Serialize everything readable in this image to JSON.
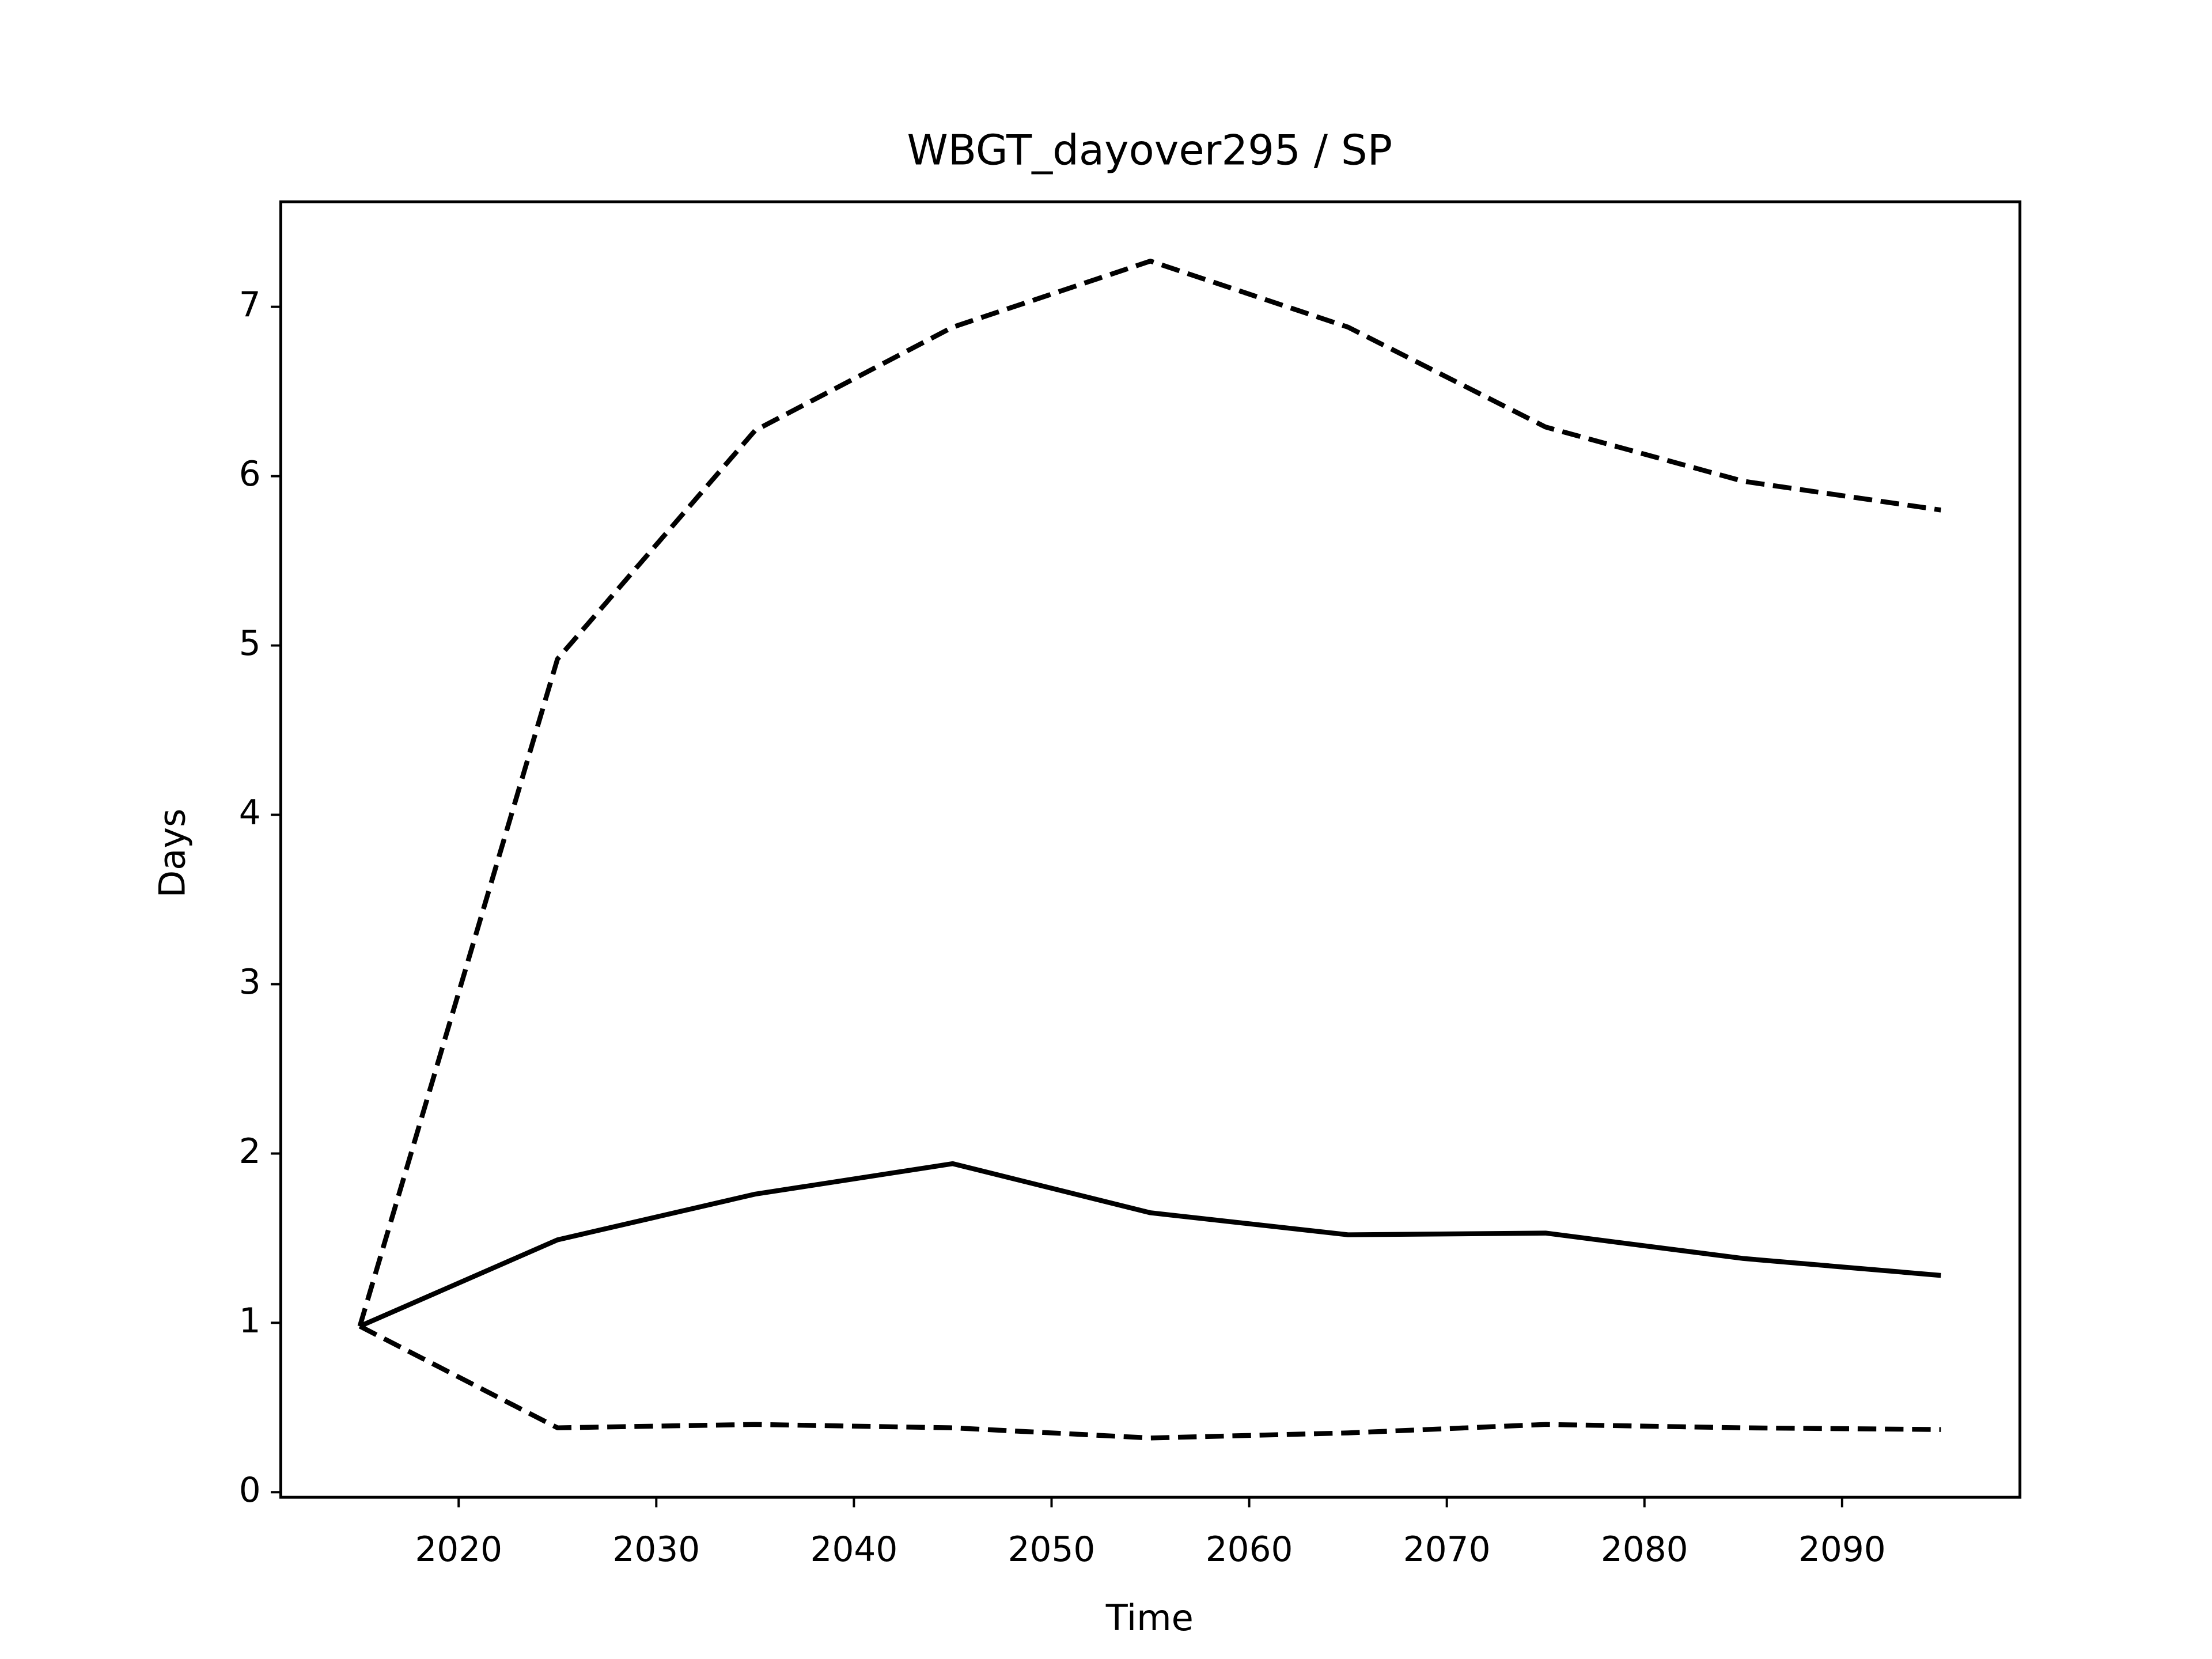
{
  "chart_data": {
    "type": "line",
    "title": "WBGT_dayover295 / SP",
    "xlabel": "Time",
    "ylabel": "Days",
    "x": [
      2015,
      2025,
      2035,
      2045,
      2055,
      2065,
      2075,
      2085,
      2095
    ],
    "series": [
      {
        "color": "#000000",
        "dash": "solid",
        "values": [
          0.98,
          1.49,
          1.76,
          1.94,
          1.65,
          1.52,
          1.53,
          1.38,
          1.28
        ]
      },
      {
        "color": "#000000",
        "dash": "dashed",
        "values": [
          0.98,
          4.92,
          6.27,
          6.88,
          7.27,
          6.88,
          6.29,
          5.97,
          5.8
        ]
      },
      {
        "color": "#000000",
        "dash": "dashed",
        "values": [
          0.98,
          0.38,
          0.4,
          0.38,
          0.32,
          0.35,
          0.4,
          0.38,
          0.37
        ]
      }
    ],
    "xlim": [
      2011,
      2099
    ],
    "xticks": [
      2020,
      2030,
      2040,
      2050,
      2060,
      2070,
      2080,
      2090
    ],
    "ylim": [
      -0.03,
      7.62
    ],
    "yticks": [
      0,
      1,
      2,
      3,
      4,
      5,
      6,
      7
    ],
    "grid": false
  }
}
